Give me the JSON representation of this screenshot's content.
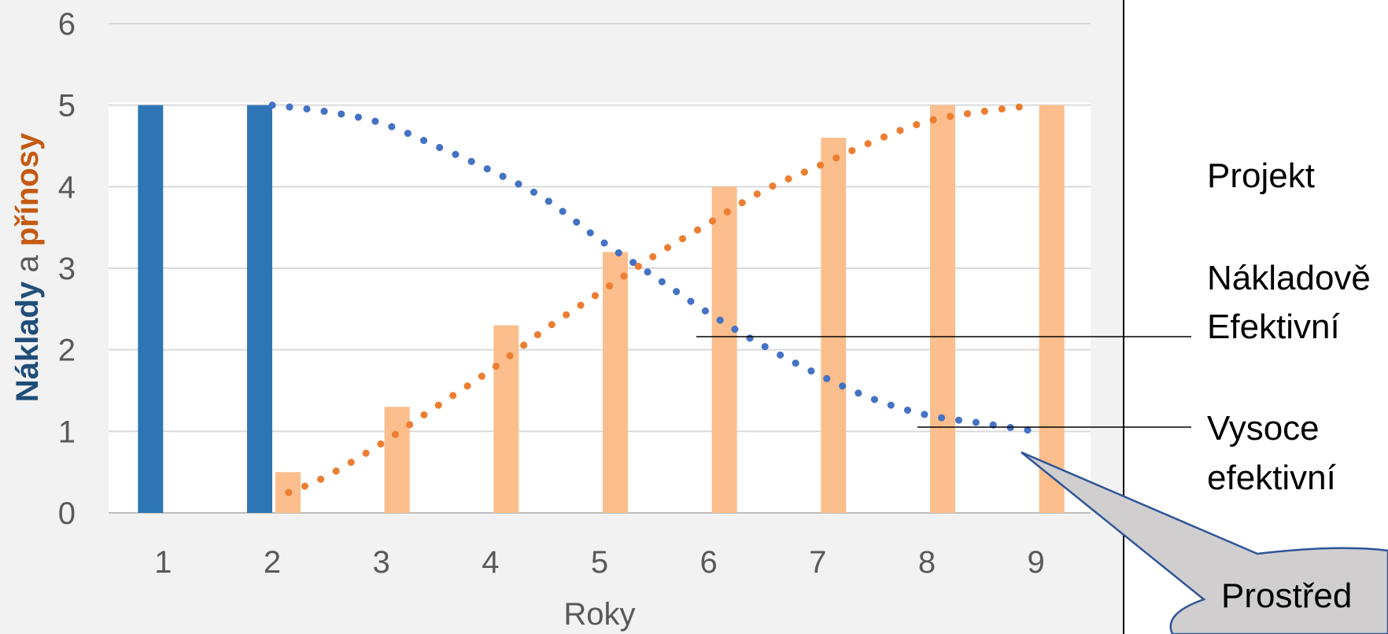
{
  "chart_data": {
    "type": "bar",
    "xlabel": "Roky",
    "ylabel": {
      "part1": "Náklady",
      "part2": " a ",
      "part3": "přínosy"
    },
    "categories": [
      "1",
      "2",
      "3",
      "4",
      "5",
      "6",
      "7",
      "8",
      "9"
    ],
    "y_ticks": [
      "0",
      "1",
      "2",
      "3",
      "4",
      "5",
      "6"
    ],
    "ylim": [
      0,
      6
    ],
    "grid": true,
    "series": [
      {
        "name": "Náklady",
        "kind": "bar",
        "color": "#2E75B6",
        "values": [
          5,
          5,
          0,
          0,
          0,
          0,
          0,
          0,
          0
        ]
      },
      {
        "name": "přínosy",
        "kind": "bar",
        "color": "#FBBE8C",
        "values": [
          0,
          0.5,
          1.3,
          2.3,
          3.2,
          4.0,
          4.6,
          5.0,
          5.0
        ]
      },
      {
        "kind": "dotted-trend",
        "color": "#4472C4",
        "x": [
          2.0,
          2.5,
          3.0,
          3.5,
          4.0,
          4.5,
          5.0,
          5.5,
          6.0,
          6.5,
          7.0,
          7.5,
          8.0,
          8.5,
          9.0
        ],
        "y": [
          5.0,
          4.92,
          4.78,
          4.5,
          4.2,
          3.85,
          3.35,
          2.9,
          2.45,
          2.05,
          1.7,
          1.4,
          1.2,
          1.1,
          1.0
        ]
      },
      {
        "kind": "dotted-trend",
        "color": "#ED7D31",
        "x": [
          2.15,
          2.5,
          3.0,
          3.5,
          4.0,
          4.5,
          5.0,
          5.5,
          6.0,
          6.5,
          7.0,
          7.5,
          8.0,
          8.5,
          9.0
        ],
        "y": [
          0.25,
          0.45,
          0.85,
          1.3,
          1.75,
          2.25,
          2.7,
          3.15,
          3.55,
          3.95,
          4.25,
          4.55,
          4.8,
          4.92,
          5.0
        ]
      }
    ]
  },
  "annotations": {
    "projekt": "Projekt",
    "nakladove_line1": "Nákladově",
    "nakladove_line2": "Efektivní",
    "vysoce_line1": "Vysoce",
    "vysoce_line2": "efektivní",
    "callout_text": "Prostřed"
  }
}
